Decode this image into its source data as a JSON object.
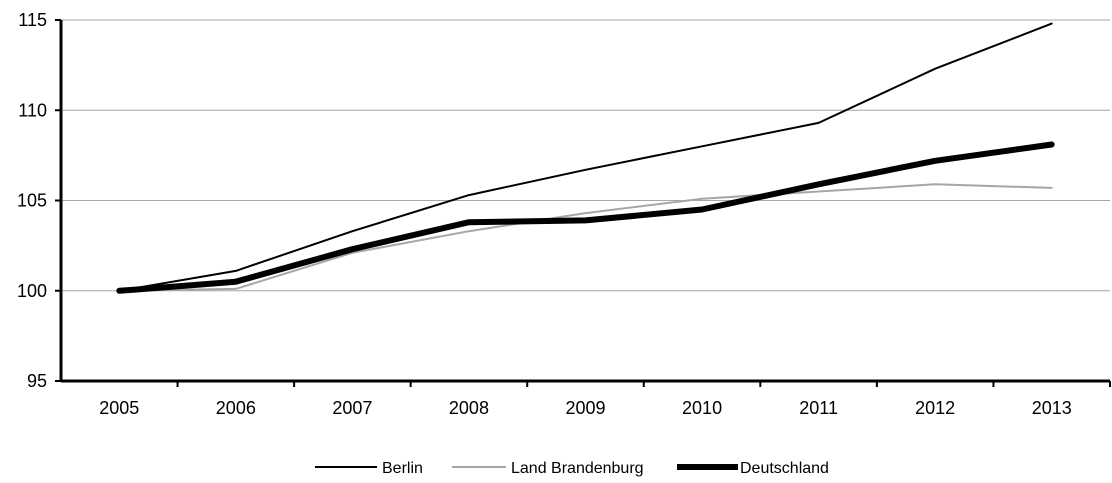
{
  "chart_data": {
    "type": "line",
    "title": "",
    "xlabel": "",
    "ylabel": "",
    "x": [
      "2005",
      "2006",
      "2007",
      "2008",
      "2009",
      "2010",
      "2011",
      "2012",
      "2013"
    ],
    "ylim": [
      95,
      115
    ],
    "yticks": [
      "95",
      "100",
      "105",
      "110",
      "115"
    ],
    "grid": "horizontal",
    "legend_position": "bottom",
    "series": [
      {
        "name": "Berlin",
        "color": "#000000",
        "style": "thin",
        "values": [
          100,
          101.1,
          103.3,
          105.3,
          106.7,
          108.0,
          109.3,
          112.3,
          114.8
        ]
      },
      {
        "name": "Land Brandenburg",
        "color": "#a6a6a6",
        "style": "thin",
        "values": [
          100,
          100.1,
          102.1,
          103.3,
          104.3,
          105.1,
          105.5,
          105.9,
          105.7
        ]
      },
      {
        "name": "Deutschland",
        "color": "#000000",
        "style": "thick",
        "values": [
          100,
          100.5,
          102.3,
          103.8,
          103.9,
          104.5,
          105.9,
          107.2,
          108.1
        ]
      }
    ]
  }
}
